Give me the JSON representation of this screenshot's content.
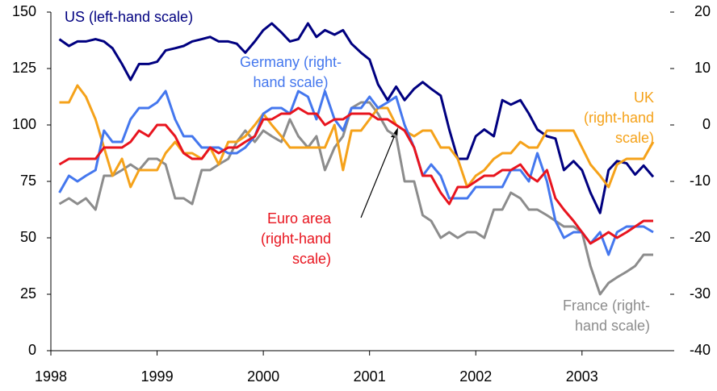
{
  "chart_data": {
    "type": "line",
    "x": [
      1998.08,
      1998.17,
      1998.25,
      1998.33,
      1998.42,
      1998.5,
      1998.58,
      1998.67,
      1998.75,
      1998.83,
      1998.92,
      1999.0,
      1999.08,
      1999.17,
      1999.25,
      1999.33,
      1999.42,
      1999.5,
      1999.58,
      1999.67,
      1999.75,
      1999.83,
      1999.92,
      2000.0,
      2000.08,
      2000.17,
      2000.25,
      2000.33,
      2000.42,
      2000.5,
      2000.58,
      2000.67,
      2000.75,
      2000.83,
      2000.92,
      2001.0,
      2001.08,
      2001.17,
      2001.25,
      2001.33,
      2001.42,
      2001.5,
      2001.58,
      2001.67,
      2001.75,
      2001.83,
      2001.92,
      2002.0,
      2002.08,
      2002.17,
      2002.25,
      2002.33,
      2002.42,
      2002.5,
      2002.58,
      2002.67,
      2002.75,
      2002.83,
      2002.92,
      2003.0,
      2003.08,
      2003.17,
      2003.25,
      2003.33,
      2003.42,
      2003.5,
      2003.58,
      2003.67
    ],
    "xlim": [
      1998,
      2003.83
    ],
    "xticks": [
      1998,
      1999,
      2000,
      2001,
      2002,
      2003
    ],
    "ylim": [
      0,
      150
    ],
    "yticks": [
      0,
      25,
      50,
      75,
      100,
      125,
      150
    ],
    "y2lim": [
      -40,
      20
    ],
    "y2ticks": [
      -40,
      -30,
      -20,
      -10,
      0,
      10,
      20
    ],
    "series": [
      {
        "name": "US",
        "color": "#000080",
        "axis": "y",
        "values": [
          138,
          135,
          137,
          137,
          138,
          137,
          134,
          127,
          120,
          127,
          127,
          128,
          133,
          134,
          135,
          137,
          138,
          139,
          137,
          137,
          136,
          132,
          137,
          142,
          145,
          141,
          137,
          138,
          145,
          139,
          142,
          140,
          142,
          136,
          132,
          129,
          118,
          111,
          117,
          111,
          116,
          119,
          116,
          113,
          98,
          85,
          85,
          95,
          98,
          95,
          111,
          109,
          111,
          105,
          98,
          95,
          94,
          80,
          84,
          80,
          70,
          61,
          80,
          84,
          83,
          78,
          82,
          77
        ]
      },
      {
        "name": "France",
        "color": "#8c8c8c",
        "axis": "y2",
        "values": [
          -14,
          -13,
          -14,
          -13,
          -15,
          -9,
          -9,
          -8,
          -7,
          -8,
          -6,
          -6,
          -7,
          -13,
          -13,
          -14,
          -8,
          -8,
          -7,
          -6,
          -3,
          -1,
          -3,
          -1,
          -2,
          -3,
          1,
          -2,
          -4,
          -2,
          -8,
          -4,
          -2,
          3,
          4,
          4,
          2,
          -1,
          -2,
          -10,
          -10,
          -16,
          -17,
          -20,
          -19,
          -20,
          -19,
          -19,
          -20,
          -15,
          -15,
          -12,
          -13,
          -15,
          -15,
          -16,
          -17,
          -18,
          -18,
          -19,
          -25,
          -30,
          -28,
          -27,
          -26,
          -25,
          -23,
          -23
        ]
      },
      {
        "name": "UK",
        "color": "#f5a21a",
        "axis": "y2",
        "values": [
          4,
          4,
          7,
          5,
          1,
          -4,
          -9,
          -6,
          -11,
          -8,
          -8,
          -8,
          -5,
          -3,
          -5,
          -5,
          -6,
          -4,
          -7,
          -3,
          -3,
          -2,
          0,
          2,
          0,
          -2,
          -4,
          -4,
          -4,
          -4,
          -4,
          0,
          -8,
          -1,
          -1,
          1,
          3,
          3,
          0,
          -1,
          -2,
          -1,
          -1,
          -4,
          -4,
          -6,
          -11,
          -9,
          -8,
          -6,
          -5,
          -5,
          -3,
          -4,
          -4,
          -1,
          -1,
          -1,
          -1,
          -4,
          -7,
          -9,
          -11,
          -7,
          -6,
          -6,
          -6,
          -3
        ]
      },
      {
        "name": "Germany",
        "color": "#4477ee",
        "axis": "y2",
        "values": [
          -12,
          -9,
          -10,
          -9,
          -8,
          -1,
          -3,
          -3,
          1,
          3,
          3,
          4,
          6,
          1,
          -2,
          -2,
          -4,
          -4,
          -4,
          -5,
          -5,
          -4,
          -2,
          2,
          3,
          3,
          2,
          6,
          5,
          1,
          6,
          1,
          -1,
          3,
          3,
          5,
          3,
          4,
          5,
          0,
          -4,
          -9,
          -7,
          -9,
          -13,
          -13,
          -13,
          -11,
          -11,
          -11,
          -11,
          -8,
          -8,
          -10,
          -5,
          -10,
          -17,
          -20,
          -19,
          -19,
          -21,
          -19,
          -23,
          -19,
          -18,
          -18,
          -18,
          -19
        ]
      },
      {
        "name": "Euro area",
        "color": "#e8141e",
        "axis": "y2",
        "values": [
          -7,
          -6,
          -6,
          -6,
          -6,
          -4,
          -4,
          -4,
          -3,
          -1,
          -2,
          0,
          0,
          -2,
          -5,
          -6,
          -6,
          -4,
          -5,
          -4,
          -4,
          -3,
          -2,
          1,
          1,
          2,
          2,
          3,
          2,
          2,
          0,
          1,
          1,
          2,
          2,
          2,
          1,
          1,
          0,
          -1,
          -4,
          -9,
          -9,
          -12,
          -14,
          -11,
          -11,
          -10,
          -9,
          -9,
          -8,
          -8,
          -7,
          -9,
          -10,
          -8,
          -13,
          -15,
          -17,
          -19,
          -21,
          -20,
          -19,
          -20,
          -19,
          -18,
          -17,
          -17
        ]
      }
    ],
    "annotations": [
      {
        "lines": [
          "US (left-hand scale)"
        ]
      },
      {
        "lines": [
          "Germany (right-",
          "hand scale)"
        ]
      },
      {
        "lines": [
          "UK",
          "(right-hand",
          "scale)"
        ]
      },
      {
        "lines": [
          "Euro area",
          "(right-hand",
          "scale)"
        ]
      },
      {
        "lines": [
          "France (right-",
          "hand scale)"
        ]
      }
    ]
  }
}
